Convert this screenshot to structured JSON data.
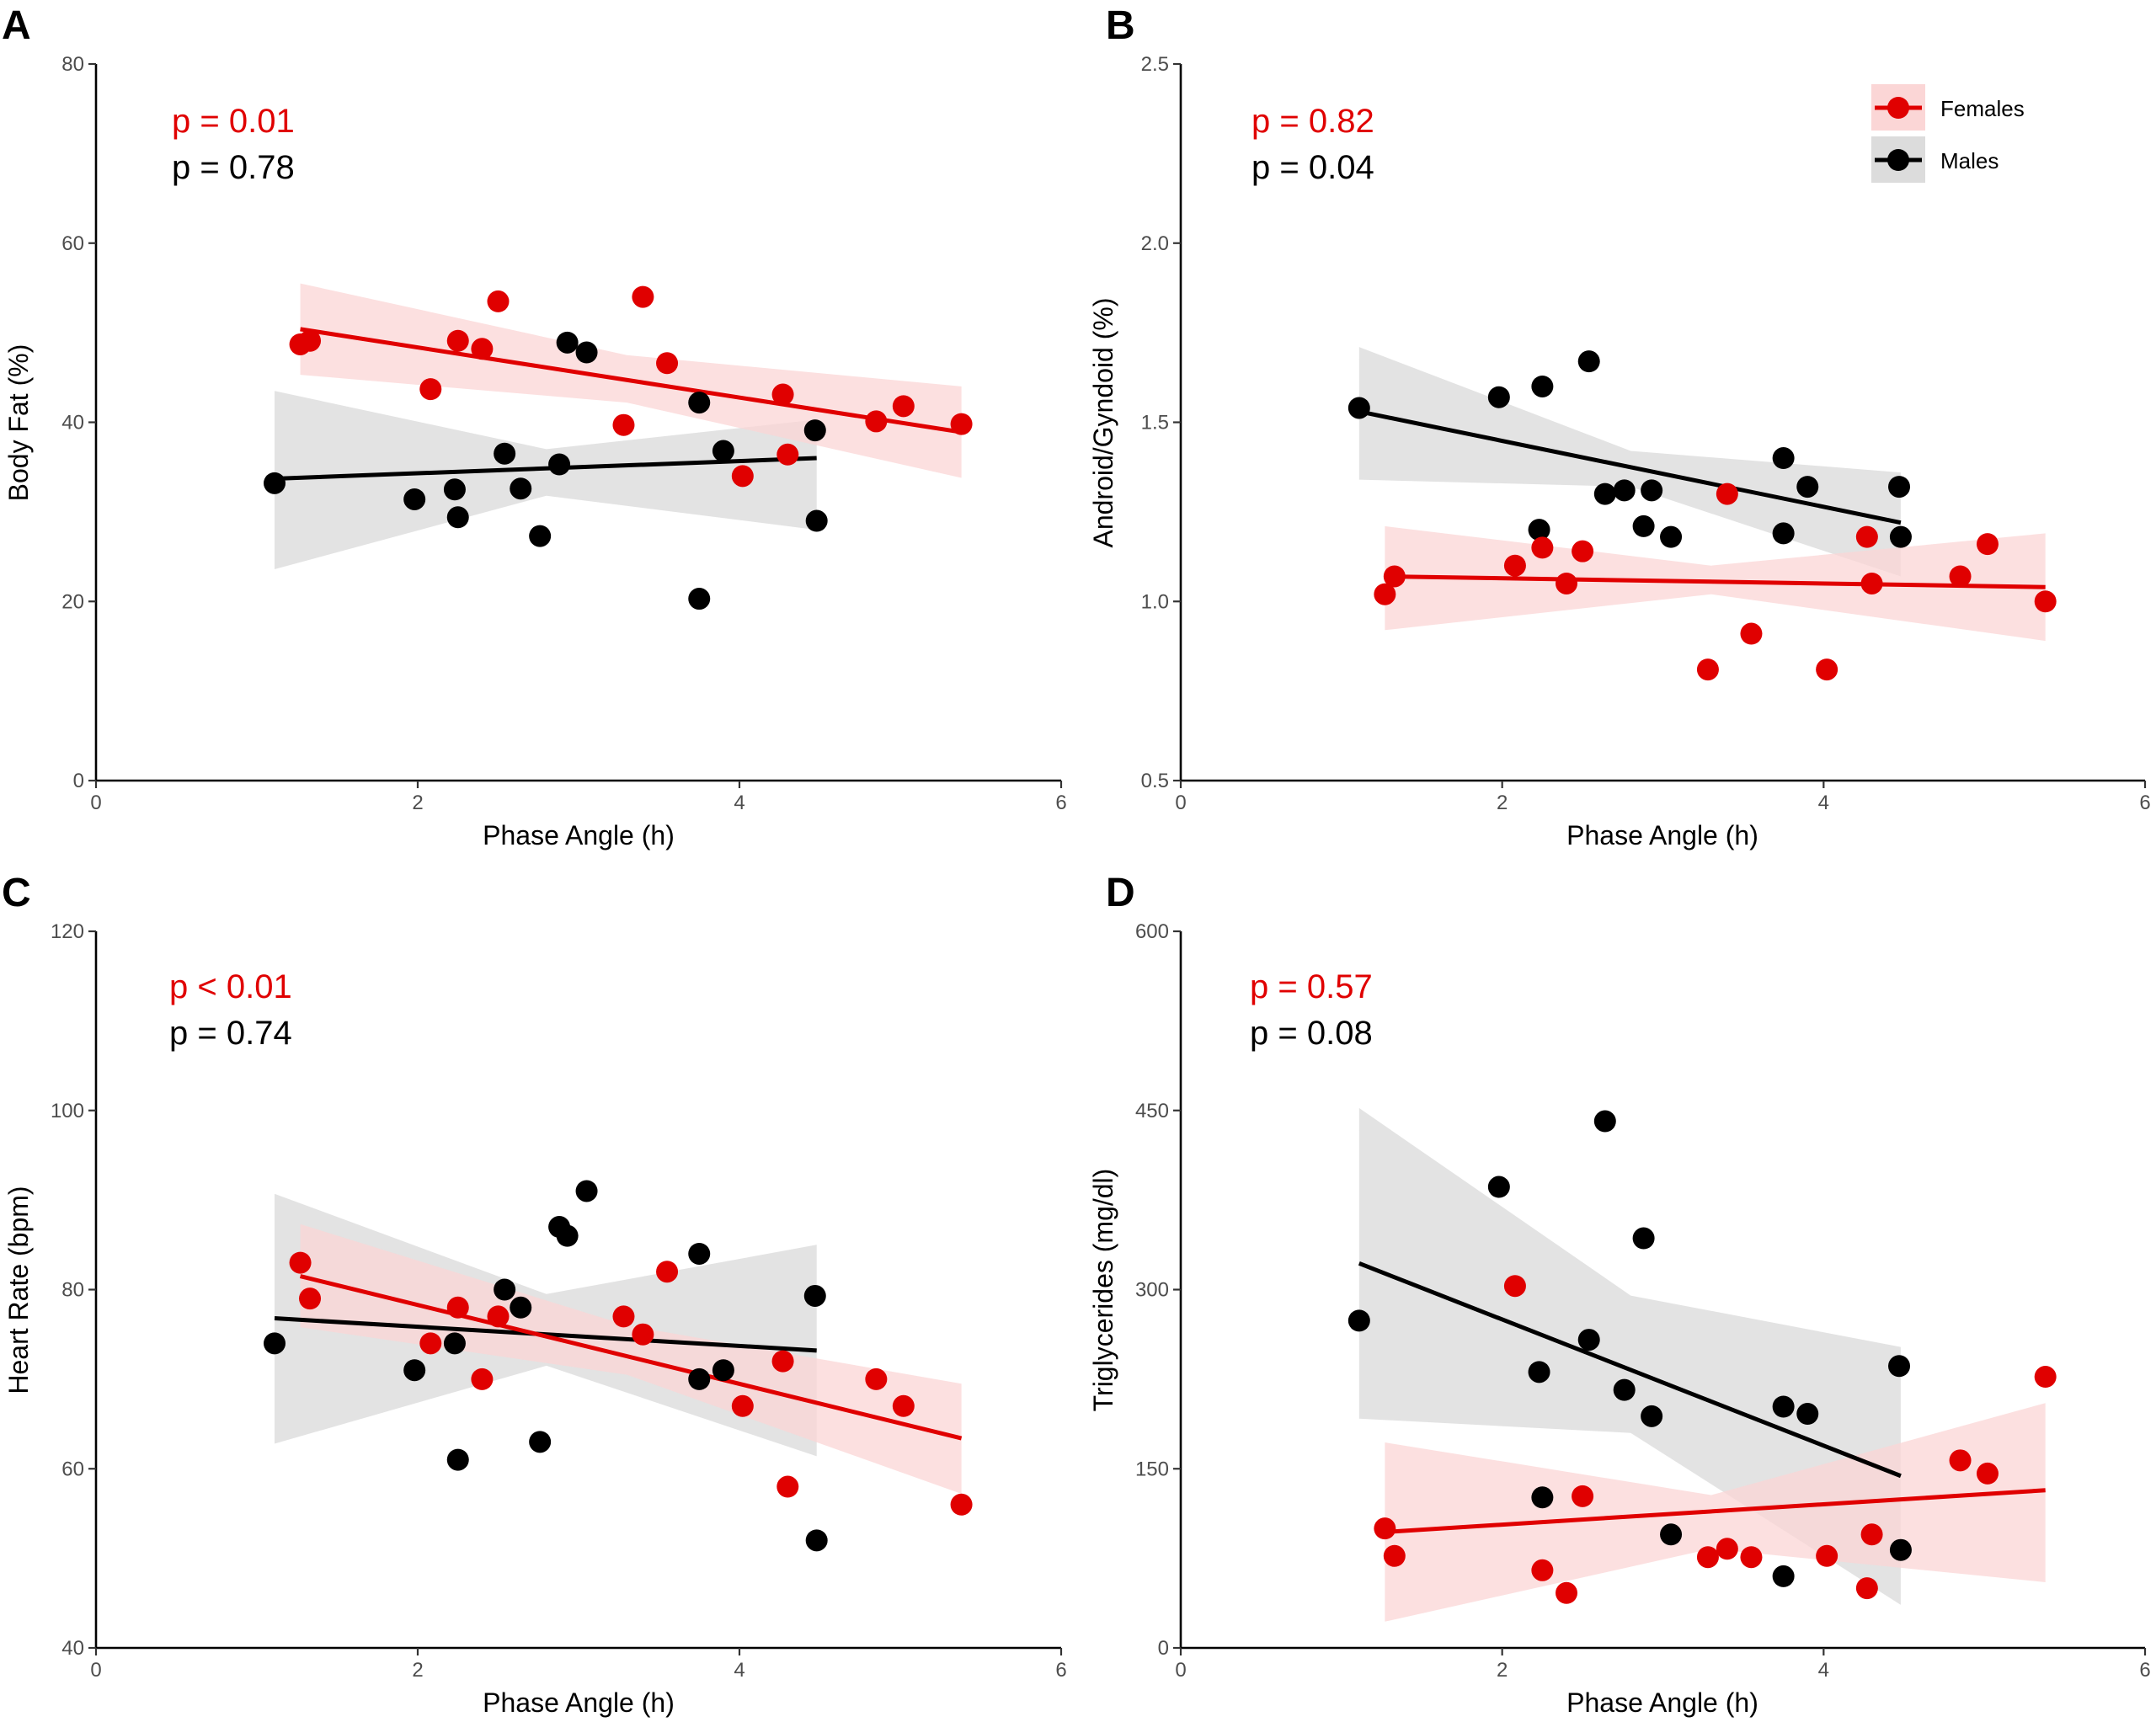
{
  "colors": {
    "female": "#e00000",
    "male": "#000000",
    "female_band": "#fbd6d6",
    "male_band": "#dcdcdc"
  },
  "legend": {
    "female_label": "Females",
    "male_label": "Males"
  },
  "chart_data": [
    {
      "panel": "A",
      "type": "scatter",
      "xlabel": "Phase Angle (h)",
      "ylabel": "Body Fat (%)",
      "xlim": [
        0,
        6
      ],
      "ylim": [
        0,
        80
      ],
      "xticks": [
        0,
        2,
        4,
        6
      ],
      "yticks": [
        0,
        20,
        40,
        60,
        80
      ],
      "p_female": "p = 0.01",
      "p_male": "p = 0.78",
      "show_legend": false,
      "series": [
        {
          "name": "Females",
          "color": "female",
          "points": [
            [
              1.27,
              48.7
            ],
            [
              1.33,
              49.1
            ],
            [
              2.08,
              43.7
            ],
            [
              2.25,
              49.1
            ],
            [
              2.4,
              48.2
            ],
            [
              2.5,
              53.5
            ],
            [
              3.28,
              39.7
            ],
            [
              3.4,
              54
            ],
            [
              3.55,
              46.6
            ],
            [
              4.02,
              34
            ],
            [
              4.27,
              43.1
            ],
            [
              4.3,
              36.4
            ],
            [
              4.85,
              40.1
            ],
            [
              5.02,
              41.8
            ],
            [
              5.38,
              39.8
            ]
          ],
          "fit": [
            [
              1.27,
              50.4
            ],
            [
              5.38,
              38.9
            ]
          ],
          "band_upper": [
            [
              1.27,
              55.5
            ],
            [
              3.3,
              47.5
            ],
            [
              5.38,
              44
            ]
          ],
          "band_lower": [
            [
              1.27,
              45.3
            ],
            [
              3.3,
              42.2
            ],
            [
              5.38,
              33.8
            ]
          ]
        },
        {
          "name": "Males",
          "color": "male",
          "points": [
            [
              1.11,
              33.2
            ],
            [
              1.98,
              31.4
            ],
            [
              2.23,
              32.5
            ],
            [
              2.25,
              29.4
            ],
            [
              2.54,
              36.5
            ],
            [
              2.64,
              32.6
            ],
            [
              2.76,
              27.3
            ],
            [
              2.88,
              35.3
            ],
            [
              2.93,
              48.9
            ],
            [
              3.05,
              47.8
            ],
            [
              3.75,
              42.2
            ],
            [
              3.75,
              20.3
            ],
            [
              3.9,
              36.8
            ],
            [
              4.47,
              39.1
            ],
            [
              4.48,
              29
            ]
          ],
          "fit": [
            [
              1.11,
              33.7
            ],
            [
              4.48,
              36
            ]
          ],
          "band_upper": [
            [
              1.11,
              43.5
            ],
            [
              2.8,
              37
            ],
            [
              4.48,
              40.3
            ]
          ],
          "band_lower": [
            [
              1.11,
              23.6
            ],
            [
              2.8,
              31.8
            ],
            [
              4.48,
              28
            ]
          ]
        }
      ]
    },
    {
      "panel": "B",
      "type": "scatter",
      "xlabel": "Phase Angle (h)",
      "ylabel": "Android/Gyndoid (%)",
      "xlim": [
        0,
        6
      ],
      "ylim": [
        0.5,
        2.5
      ],
      "xticks": [
        0,
        2,
        4,
        6
      ],
      "yticks": [
        0.5,
        1.0,
        1.5,
        2.0,
        2.5
      ],
      "ytick_labels": [
        "0.5",
        "1.0",
        "1.5",
        "2.0",
        "2.5"
      ],
      "p_female": "p = 0.82",
      "p_male": "p = 0.04",
      "show_legend": true,
      "series": [
        {
          "name": "Females",
          "color": "female",
          "points": [
            [
              1.27,
              1.02
            ],
            [
              1.33,
              1.07
            ],
            [
              2.08,
              1.1
            ],
            [
              2.25,
              1.15
            ],
            [
              2.4,
              1.05
            ],
            [
              2.5,
              1.14
            ],
            [
              3.28,
              0.81
            ],
            [
              3.4,
              1.3
            ],
            [
              3.55,
              0.91
            ],
            [
              4.02,
              0.81
            ],
            [
              4.27,
              1.18
            ],
            [
              4.3,
              1.05
            ],
            [
              4.85,
              1.07
            ],
            [
              5.02,
              1.16
            ],
            [
              5.38,
              1.0
            ]
          ],
          "fit": [
            [
              1.27,
              1.07
            ],
            [
              5.38,
              1.04
            ]
          ],
          "band_upper": [
            [
              1.27,
              1.21
            ],
            [
              3.3,
              1.1
            ],
            [
              5.38,
              1.19
            ]
          ],
          "band_lower": [
            [
              1.27,
              0.92
            ],
            [
              3.3,
              1.02
            ],
            [
              5.38,
              0.89
            ]
          ]
        },
        {
          "name": "Males",
          "color": "male",
          "points": [
            [
              1.11,
              1.54
            ],
            [
              1.98,
              1.57
            ],
            [
              2.23,
              1.2
            ],
            [
              2.25,
              1.6
            ],
            [
              2.54,
              1.67
            ],
            [
              2.64,
              1.3
            ],
            [
              2.76,
              1.31
            ],
            [
              2.88,
              1.21
            ],
            [
              2.93,
              1.31
            ],
            [
              3.05,
              1.18
            ],
            [
              3.75,
              1.4
            ],
            [
              3.75,
              1.19
            ],
            [
              3.9,
              1.32
            ],
            [
              4.47,
              1.32
            ],
            [
              4.48,
              1.18
            ]
          ],
          "fit": [
            [
              1.11,
              1.53
            ],
            [
              4.48,
              1.22
            ]
          ],
          "band_upper": [
            [
              1.11,
              1.71
            ],
            [
              2.8,
              1.42
            ],
            [
              4.48,
              1.36
            ]
          ],
          "band_lower": [
            [
              1.11,
              1.34
            ],
            [
              2.8,
              1.32
            ],
            [
              4.48,
              1.07
            ]
          ]
        }
      ]
    },
    {
      "panel": "C",
      "type": "scatter",
      "xlabel": "Phase Angle (h)",
      "ylabel": "Heart Rate (bpm)",
      "xlim": [
        0,
        6
      ],
      "ylim": [
        40,
        120
      ],
      "xticks": [
        0,
        2,
        4,
        6
      ],
      "yticks": [
        40,
        60,
        80,
        100,
        120
      ],
      "p_female": "p < 0.01",
      "p_male": "p = 0.74",
      "show_legend": false,
      "series": [
        {
          "name": "Females",
          "color": "female",
          "points": [
            [
              1.27,
              83
            ],
            [
              1.33,
              79
            ],
            [
              2.08,
              74
            ],
            [
              2.25,
              78
            ],
            [
              2.4,
              70
            ],
            [
              2.5,
              77
            ],
            [
              3.28,
              77
            ],
            [
              3.4,
              75
            ],
            [
              3.55,
              82
            ],
            [
              4.02,
              67
            ],
            [
              4.27,
              72
            ],
            [
              4.3,
              58
            ],
            [
              4.85,
              70
            ],
            [
              5.02,
              67
            ],
            [
              5.38,
              56
            ]
          ],
          "fit": [
            [
              1.27,
              81.5
            ],
            [
              5.38,
              63.4
            ]
          ],
          "band_upper": [
            [
              1.27,
              87.3
            ],
            [
              3.3,
              76
            ],
            [
              5.38,
              69.5
            ]
          ],
          "band_lower": [
            [
              1.27,
              75.8
            ],
            [
              3.3,
              70.5
            ],
            [
              5.38,
              57.2
            ]
          ]
        },
        {
          "name": "Males",
          "color": "male",
          "points": [
            [
              1.11,
              74
            ],
            [
              1.98,
              71
            ],
            [
              2.23,
              74
            ],
            [
              2.25,
              61
            ],
            [
              2.54,
              80
            ],
            [
              2.64,
              78
            ],
            [
              2.76,
              63
            ],
            [
              2.88,
              87
            ],
            [
              2.93,
              86
            ],
            [
              3.05,
              91
            ],
            [
              3.75,
              84
            ],
            [
              3.75,
              70
            ],
            [
              3.9,
              71
            ],
            [
              4.47,
              79.3
            ],
            [
              4.48,
              52
            ]
          ],
          "fit": [
            [
              1.11,
              76.8
            ],
            [
              4.48,
              73.2
            ]
          ],
          "band_upper": [
            [
              1.11,
              90.7
            ],
            [
              2.8,
              79.5
            ],
            [
              4.48,
              85
            ]
          ],
          "band_lower": [
            [
              1.11,
              62.8
            ],
            [
              2.8,
              71.5
            ],
            [
              4.48,
              61.4
            ]
          ]
        }
      ]
    },
    {
      "panel": "D",
      "type": "scatter",
      "xlabel": "Phase Angle (h)",
      "ylabel": "Triglycerides (mg/dl)",
      "xlim": [
        0,
        6
      ],
      "ylim": [
        0,
        600
      ],
      "xticks": [
        0,
        2,
        4,
        6
      ],
      "yticks": [
        0,
        150,
        300,
        450,
        600
      ],
      "p_female": "p = 0.57",
      "p_male": "p = 0.08",
      "show_legend": false,
      "series": [
        {
          "name": "Females",
          "color": "female",
          "points": [
            [
              1.27,
              100
            ],
            [
              1.33,
              77
            ],
            [
              2.08,
              303
            ],
            [
              2.25,
              65
            ],
            [
              2.4,
              46
            ],
            [
              2.5,
              127
            ],
            [
              3.28,
              76
            ],
            [
              3.4,
              83
            ],
            [
              3.55,
              76
            ],
            [
              4.02,
              77
            ],
            [
              4.27,
              50
            ],
            [
              4.3,
              95
            ],
            [
              4.85,
              157
            ],
            [
              5.02,
              146
            ],
            [
              5.38,
              227
            ]
          ],
          "fit": [
            [
              1.27,
              97
            ],
            [
              5.38,
              132
            ]
          ],
          "band_upper": [
            [
              1.27,
              172
            ],
            [
              3.3,
              128
            ],
            [
              5.38,
              205
            ]
          ],
          "band_lower": [
            [
              1.27,
              22
            ],
            [
              3.3,
              83
            ],
            [
              5.38,
              55
            ]
          ]
        },
        {
          "name": "Males",
          "color": "male",
          "points": [
            [
              1.11,
              274
            ],
            [
              1.98,
              386
            ],
            [
              2.23,
              231
            ],
            [
              2.25,
              126
            ],
            [
              2.54,
              258
            ],
            [
              2.64,
              441
            ],
            [
              2.76,
              216
            ],
            [
              2.88,
              343
            ],
            [
              2.93,
              194
            ],
            [
              3.05,
              95
            ],
            [
              3.75,
              202
            ],
            [
              3.75,
              60
            ],
            [
              3.9,
              196
            ],
            [
              4.47,
              236
            ],
            [
              4.48,
              82
            ]
          ],
          "fit": [
            [
              1.11,
              322
            ],
            [
              4.48,
              144
            ]
          ],
          "band_upper": [
            [
              1.11,
              452
            ],
            [
              2.8,
              295
            ],
            [
              4.48,
              252
            ]
          ],
          "band_lower": [
            [
              1.11,
              192
            ],
            [
              2.8,
              180
            ],
            [
              4.48,
              36
            ]
          ]
        }
      ]
    }
  ]
}
